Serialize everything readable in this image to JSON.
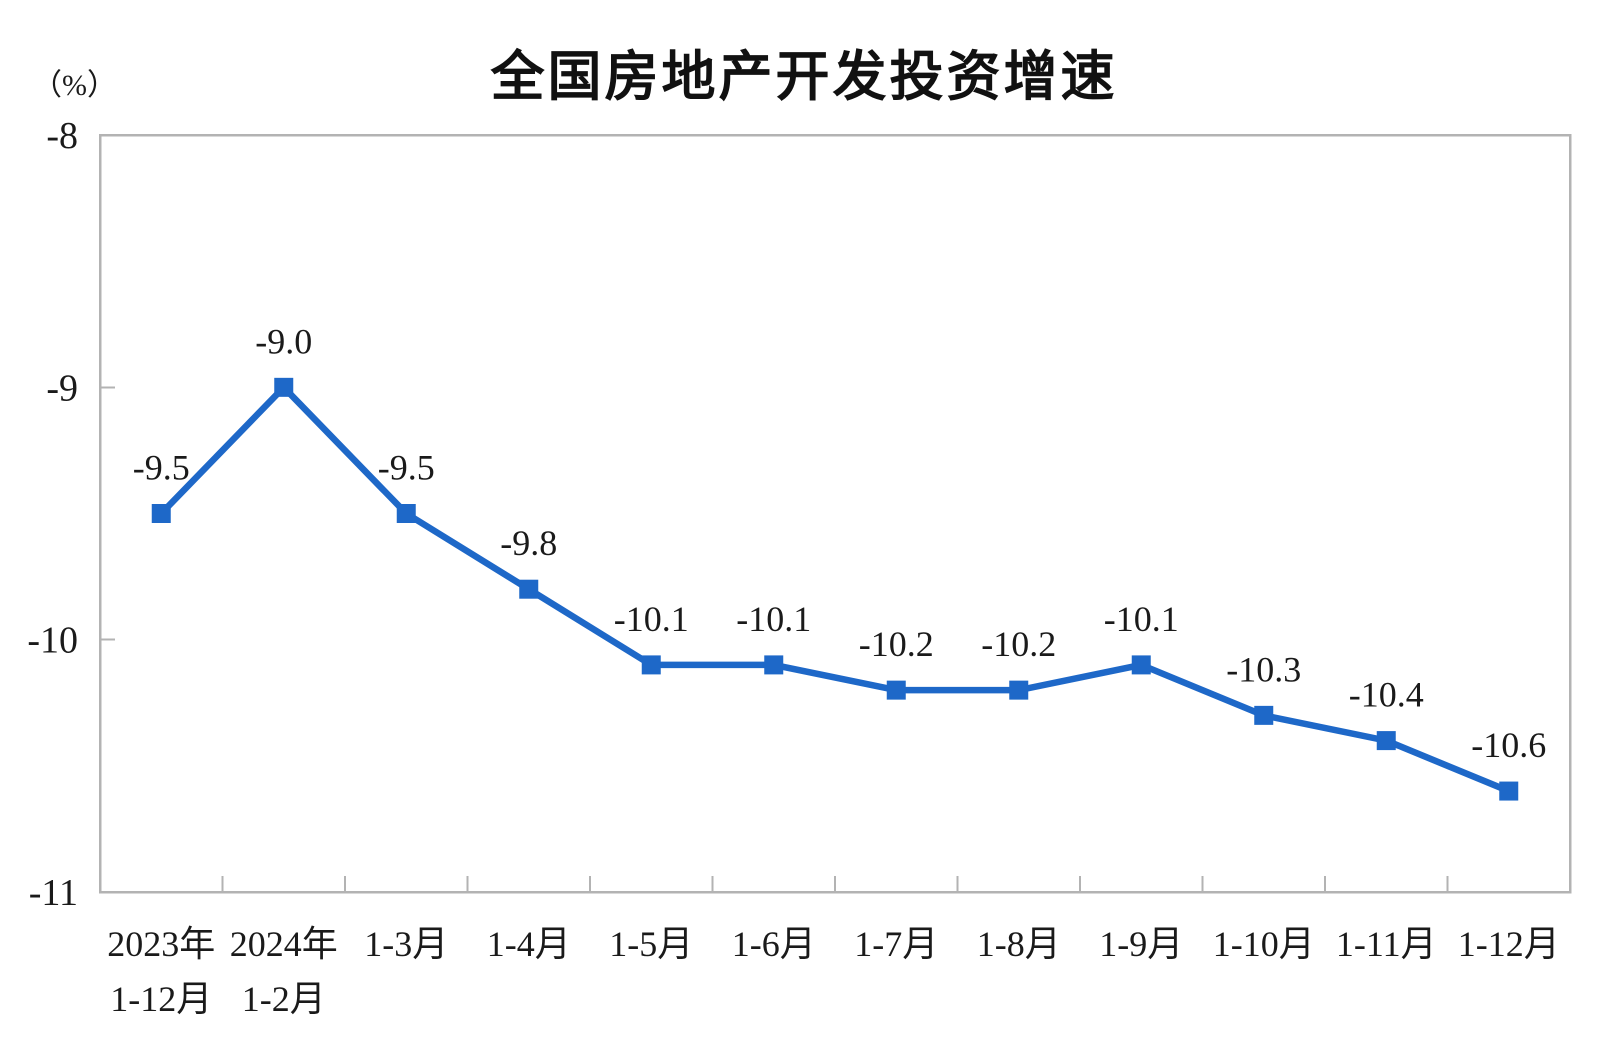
{
  "chart_data": {
    "type": "line",
    "title": "全国房地产开发投资增速",
    "unit_label": "（%）",
    "categories": [
      "2023年\n1-12月",
      "2024年\n1-2月",
      "1-3月",
      "1-4月",
      "1-5月",
      "1-6月",
      "1-7月",
      "1-8月",
      "1-9月",
      "1-10月",
      "1-11月",
      "1-12月"
    ],
    "values": [
      -9.5,
      -9.0,
      -9.5,
      -9.8,
      -10.1,
      -10.1,
      -10.2,
      -10.2,
      -10.1,
      -10.3,
      -10.4,
      -10.6
    ],
    "data_labels": [
      "-9.5",
      "-9.0",
      "-9.5",
      "-9.8",
      "-10.1",
      "-10.1",
      "-10.2",
      "-10.2",
      "-10.1",
      "-10.3",
      "-10.4",
      "-10.6"
    ],
    "ylim": [
      -11,
      -8
    ],
    "yticks": [
      -8,
      -9,
      -10,
      -11
    ],
    "ytick_labels": [
      "-8",
      "-9",
      "-10",
      "-11"
    ],
    "grid": false,
    "legend": "none",
    "marker": "square",
    "colors": {
      "line": "#1E68C8",
      "marker": "#1E68C8",
      "axis": "#b3b3b3",
      "text": "#1a1a1a"
    }
  }
}
